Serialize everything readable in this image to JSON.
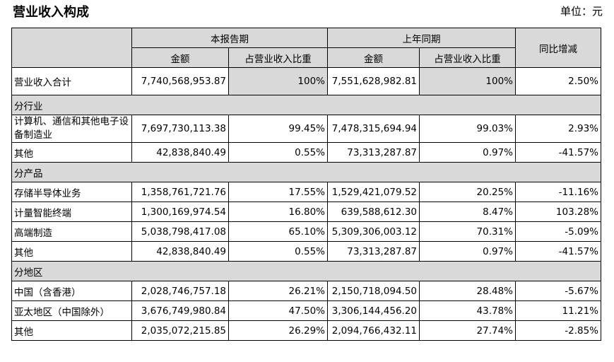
{
  "title": "营业收入构成",
  "unit": "单位：元",
  "headers": {
    "current_period": "本报告期",
    "prior_period": "上年同期",
    "yoy": "同比增减",
    "amount": "金额",
    "ratio": "占营业收入比重"
  },
  "total": {
    "label": "营业收入合计",
    "cur_amount": "7,740,568,953.87",
    "cur_ratio": "100%",
    "prev_amount": "7,551,628,982.81",
    "prev_ratio": "100%",
    "yoy": "2.50%"
  },
  "sections": [
    {
      "title": "分行业",
      "rows": [
        {
          "label": "计算机、通信和其他电子设备制造业",
          "cur_amount": "7,697,730,113.38",
          "cur_ratio": "99.45%",
          "prev_amount": "7,478,315,694.94",
          "prev_ratio": "99.03%",
          "yoy": "2.93%"
        },
        {
          "label": "其他",
          "cur_amount": "42,838,840.49",
          "cur_ratio": "0.55%",
          "prev_amount": "73,313,287.87",
          "prev_ratio": "0.97%",
          "yoy": "-41.57%"
        }
      ]
    },
    {
      "title": "分产品",
      "rows": [
        {
          "label": "存储半导体业务",
          "cur_amount": "1,358,761,721.76",
          "cur_ratio": "17.55%",
          "prev_amount": "1,529,421,079.52",
          "prev_ratio": "20.25%",
          "yoy": "-11.16%"
        },
        {
          "label": "计量智能终端",
          "cur_amount": "1,300,169,974.54",
          "cur_ratio": "16.80%",
          "prev_amount": "639,588,612.30",
          "prev_ratio": "8.47%",
          "yoy": "103.28%"
        },
        {
          "label": "高端制造",
          "cur_amount": "5,038,798,417.08",
          "cur_ratio": "65.10%",
          "prev_amount": "5,309,306,003.12",
          "prev_ratio": "70.31%",
          "yoy": "-5.09%"
        },
        {
          "label": "其他",
          "cur_amount": "42,838,840.49",
          "cur_ratio": "0.55%",
          "prev_amount": "73,313,287.87",
          "prev_ratio": "0.97%",
          "yoy": "-41.57%"
        }
      ]
    },
    {
      "title": "分地区",
      "rows": [
        {
          "label": "中国（含香港）",
          "cur_amount": "2,028,746,757.18",
          "cur_ratio": "26.21%",
          "prev_amount": "2,150,718,094.50",
          "prev_ratio": "28.48%",
          "yoy": "-5.67%"
        },
        {
          "label": "亚太地区（中国除外）",
          "cur_amount": "3,676,749,980.84",
          "cur_ratio": "47.50%",
          "prev_amount": "3,306,144,456.20",
          "prev_ratio": "43.78%",
          "yoy": "11.21%"
        },
        {
          "label": "其他",
          "cur_amount": "2,035,072,215.85",
          "cur_ratio": "26.29%",
          "prev_amount": "2,094,766,432.11",
          "prev_ratio": "27.74%",
          "yoy": "-2.85%"
        }
      ]
    }
  ]
}
